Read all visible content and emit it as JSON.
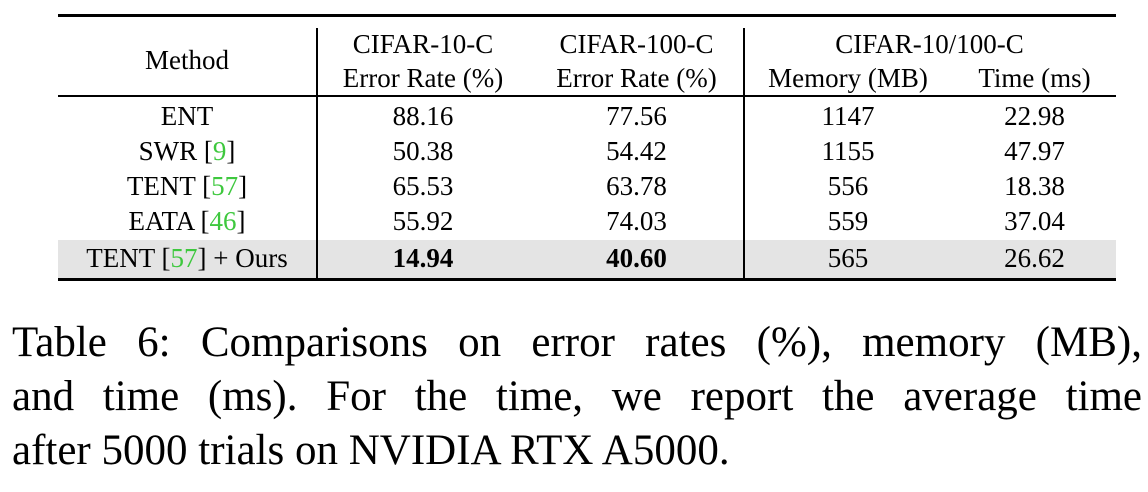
{
  "table": {
    "method_header": "Method",
    "groups": [
      {
        "title": "CIFAR-10-C",
        "sub": "Error Rate (%)"
      },
      {
        "title": "CIFAR-100-C",
        "sub": "Error Rate (%)"
      },
      {
        "title": "CIFAR-10/100-C",
        "sub1": "Memory (MB)",
        "sub2": "Time (ms)"
      }
    ],
    "rows": [
      {
        "method": "ENT",
        "cite": "",
        "suffix": "",
        "c10": "88.16",
        "c100": "77.56",
        "mem": "1147",
        "time": "22.98"
      },
      {
        "method": "SWR [",
        "cite": "9",
        "suffix": "]",
        "c10": "50.38",
        "c100": "54.42",
        "mem": "1155",
        "time": "47.97"
      },
      {
        "method": "TENT [",
        "cite": "57",
        "suffix": "]",
        "c10": "65.53",
        "c100": "63.78",
        "mem": "556",
        "time": "18.38"
      },
      {
        "method": "EATA [",
        "cite": "46",
        "suffix": "]",
        "c10": "55.92",
        "c100": "74.03",
        "mem": "559",
        "time": "37.04"
      },
      {
        "method": "TENT [",
        "cite": "57",
        "suffix": "] + Ours",
        "c10": "14.94",
        "c100": "40.60",
        "mem": "565",
        "time": "26.62"
      }
    ]
  },
  "caption": {
    "line1": "Table 6: Comparisons on error rates (%), memory (MB),",
    "line2": "and time (ms). For the time, we report the average time",
    "line3": "after 5000 trials on NVIDIA RTX A5000."
  },
  "colors": {
    "cite": "#3ec83e",
    "highlight_row": "#e4e4e4"
  }
}
